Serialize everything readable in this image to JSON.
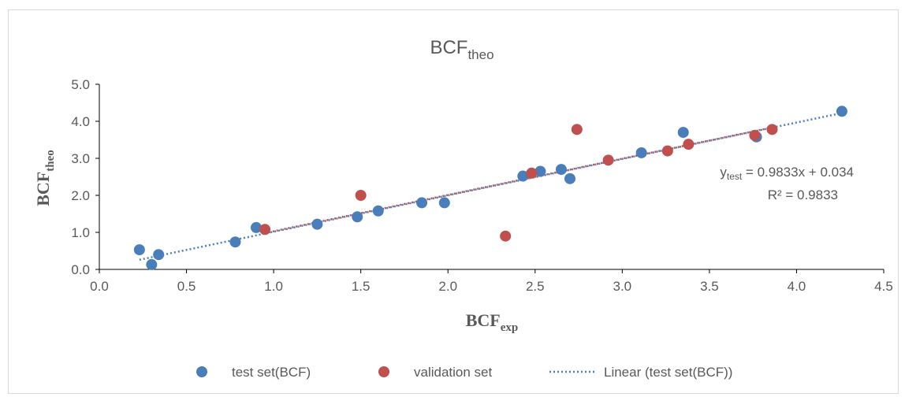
{
  "chart_data": {
    "type": "scatter",
    "title": {
      "main": "BCF",
      "sub": "theo"
    },
    "xlabel": {
      "main": "BCF",
      "sub": "exp"
    },
    "ylabel": {
      "main": "BCF",
      "sub": "theo"
    },
    "xlim": [
      0,
      4.5
    ],
    "ylim": [
      0,
      5
    ],
    "x_ticks": [
      "0.0",
      "0.5",
      "1.0",
      "1.5",
      "2.0",
      "2.5",
      "3.0",
      "3.5",
      "4.0",
      "4.5"
    ],
    "y_ticks": [
      "0.0",
      "1.0",
      "2.0",
      "3.0",
      "4.0",
      "5.0"
    ],
    "series": [
      {
        "name": "test set(BCF)",
        "color": "#4a7ebb",
        "points": [
          [
            0.23,
            0.53
          ],
          [
            0.3,
            0.13
          ],
          [
            0.34,
            0.4
          ],
          [
            0.78,
            0.74
          ],
          [
            0.9,
            1.13
          ],
          [
            1.25,
            1.22
          ],
          [
            1.48,
            1.42
          ],
          [
            1.6,
            1.58
          ],
          [
            1.85,
            1.8
          ],
          [
            1.98,
            1.8
          ],
          [
            2.43,
            2.52
          ],
          [
            2.53,
            2.65
          ],
          [
            2.65,
            2.7
          ],
          [
            2.7,
            2.45
          ],
          [
            3.11,
            3.15
          ],
          [
            3.35,
            3.7
          ],
          [
            3.77,
            3.58
          ],
          [
            4.26,
            4.27
          ]
        ]
      },
      {
        "name": "validation set",
        "color": "#c0504d",
        "points": [
          [
            0.95,
            1.08
          ],
          [
            1.5,
            2.0
          ],
          [
            2.33,
            0.9
          ],
          [
            2.48,
            2.6
          ],
          [
            2.74,
            3.78
          ],
          [
            2.92,
            2.95
          ],
          [
            3.26,
            3.2
          ],
          [
            3.38,
            3.38
          ],
          [
            3.76,
            3.62
          ],
          [
            3.86,
            3.78
          ]
        ]
      }
    ],
    "trendlines": [
      {
        "name": "Linear (test set(BCF))",
        "color": "#4a7ebb",
        "slope": 0.9833,
        "intercept": 0.034,
        "x_range": [
          0.23,
          4.26
        ]
      },
      {
        "name": "",
        "color": "#c0504d",
        "slope": 0.98,
        "intercept": 0.05,
        "x_range": [
          0.95,
          3.86
        ]
      }
    ],
    "equation": {
      "y_main": "y",
      "y_sub": "test",
      "rhs": " = 0.9833x + 0.034",
      "r2": "R² = 0.9833"
    },
    "legend": {
      "position": "bottom",
      "items": [
        {
          "label": "test set(BCF)",
          "kind": "marker",
          "color": "#4a7ebb"
        },
        {
          "label": "validation set",
          "kind": "marker",
          "color": "#c0504d"
        },
        {
          "label": "Linear (test set(BCF))",
          "kind": "dotted-line",
          "color": "#4a7ebb"
        }
      ]
    },
    "grid": false
  }
}
